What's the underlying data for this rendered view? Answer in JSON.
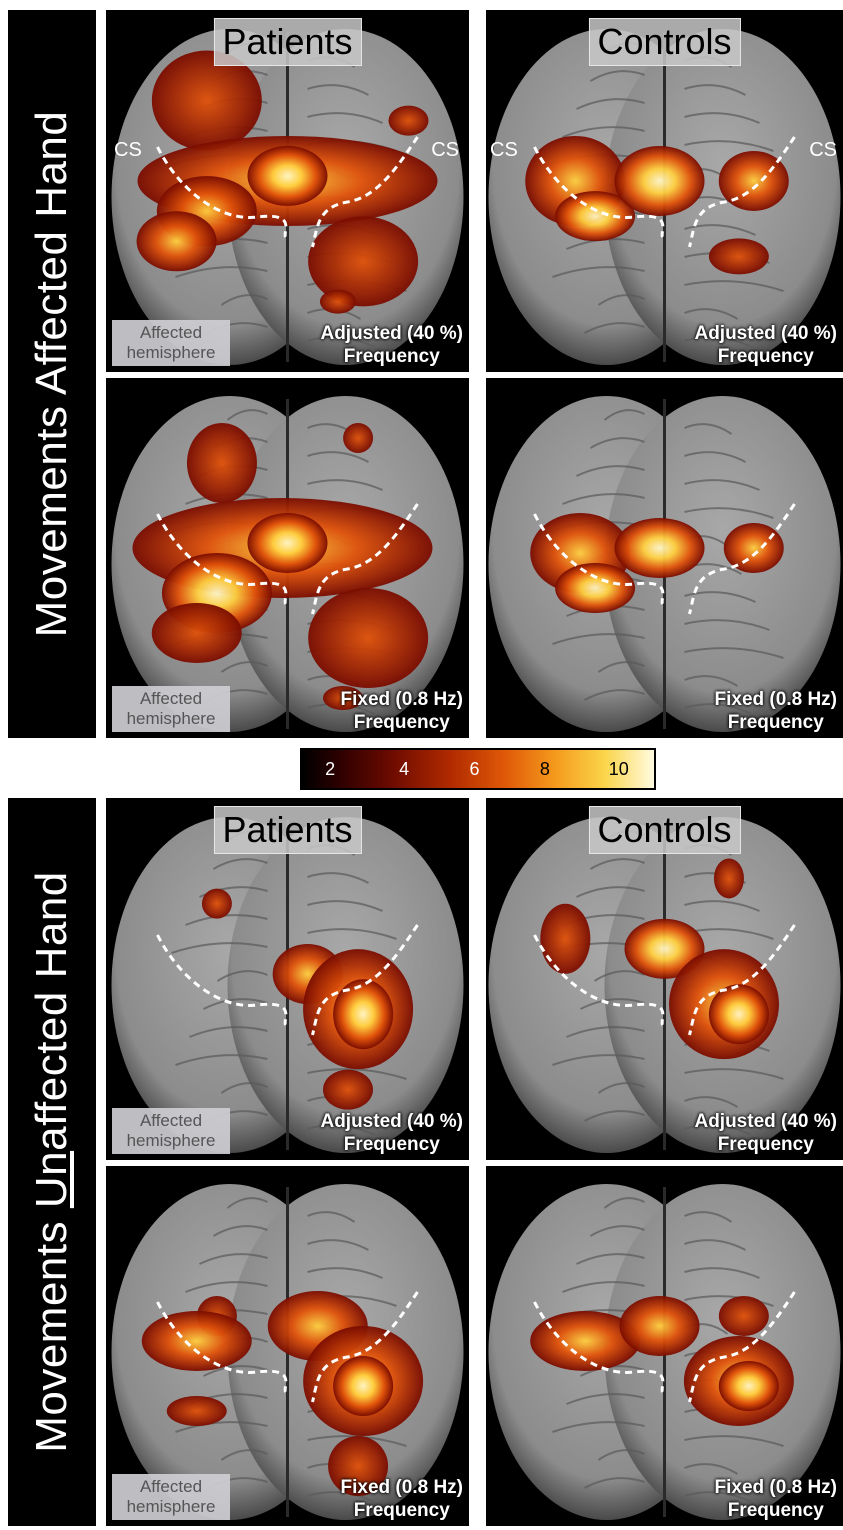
{
  "rows": [
    {
      "label_pre": "Movements ",
      "label_underlined": "",
      "label_post": "Affected Hand"
    },
    {
      "label_pre": "Movements ",
      "label_underlined": "Un",
      "label_post": "affected Hand"
    }
  ],
  "column_titles": [
    "Patients",
    "Controls"
  ],
  "conditions": {
    "adjusted": {
      "line1": "Adjusted (40 %)",
      "line2": "Frequency"
    },
    "fixed": {
      "line1": "Fixed (0.8 Hz)",
      "line2": "Frequency"
    }
  },
  "affected_hemisphere_label": {
    "line1": "Affected",
    "line2": "hemisphere"
  },
  "cs_label": "CS",
  "colorbar": {
    "ticks": [
      "2",
      "4",
      "6",
      "8",
      "10"
    ],
    "tick_values": [
      2,
      4,
      6,
      8,
      10
    ],
    "range": [
      1,
      11
    ]
  },
  "colors": {
    "background": "#000000",
    "brain": "#8c8c8c",
    "activation_low": "#7a0c00",
    "activation_mid": "#e0520a",
    "activation_high": "#fff6c8",
    "sulcus_line": "#ffffff"
  }
}
